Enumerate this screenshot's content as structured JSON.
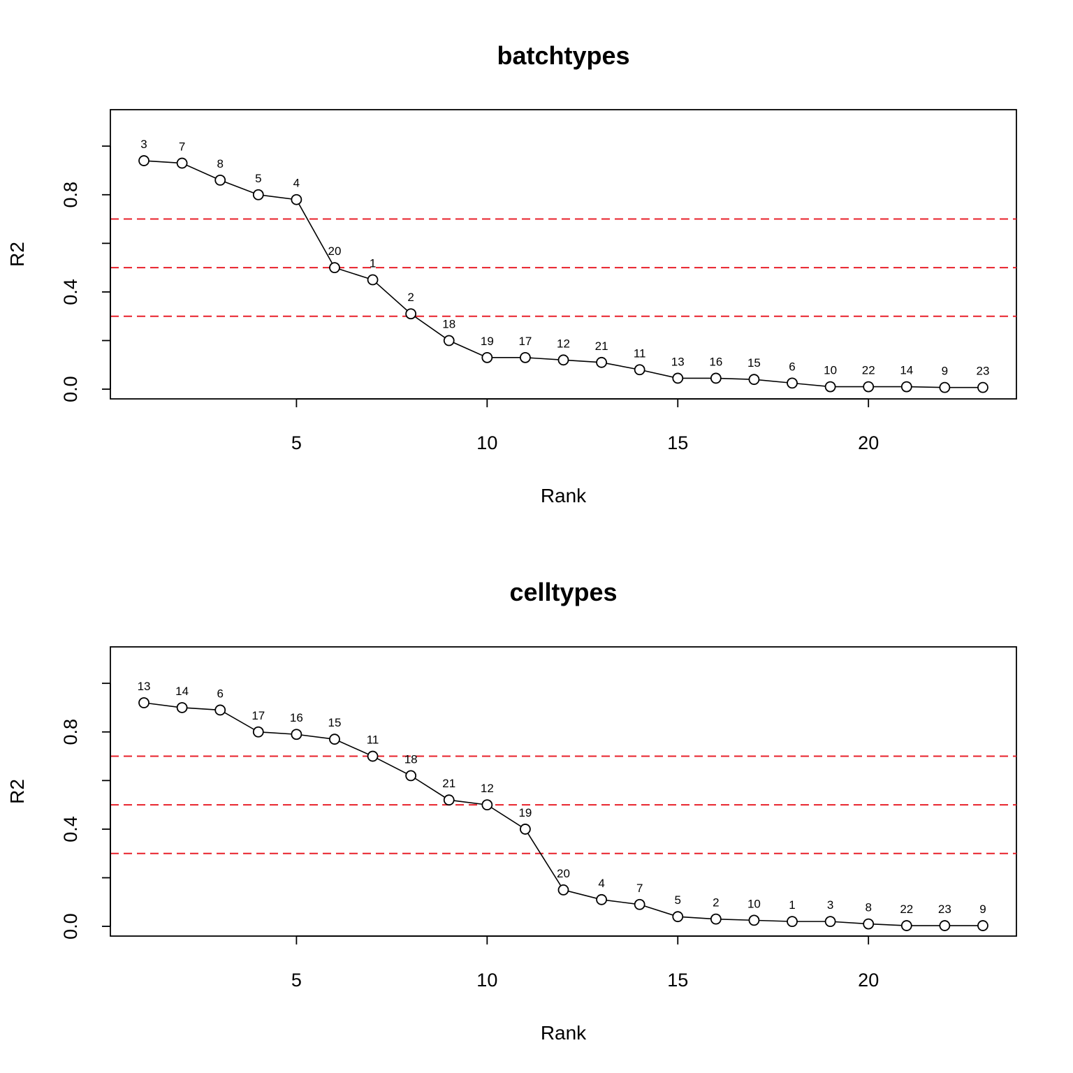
{
  "chart_data": [
    {
      "type": "line",
      "title": "batchtypes",
      "xlabel": "Rank",
      "ylabel": "R2",
      "xlim": [
        0.12,
        23.88
      ],
      "ylim": [
        -0.04,
        1.15
      ],
      "x_ticks": [
        5,
        10,
        15,
        20
      ],
      "y_ticks": [
        0.0,
        0.2,
        0.4,
        0.6,
        0.8,
        1.0
      ],
      "y_tick_labels": [
        "0.0",
        "",
        "0.4",
        "",
        "0.8",
        ""
      ],
      "reference_lines": [
        0.7,
        0.5,
        0.3
      ],
      "reference_line_color": "#e8202a",
      "marker": "open-circle",
      "grid": false,
      "legend": "none",
      "x": [
        1,
        2,
        3,
        4,
        5,
        6,
        7,
        8,
        9,
        10,
        11,
        12,
        13,
        14,
        15,
        16,
        17,
        18,
        19,
        20,
        21,
        22,
        23
      ],
      "y": [
        0.94,
        0.93,
        0.86,
        0.8,
        0.78,
        0.5,
        0.45,
        0.31,
        0.2,
        0.13,
        0.13,
        0.12,
        0.11,
        0.08,
        0.045,
        0.045,
        0.04,
        0.025,
        0.01,
        0.01,
        0.01,
        0.007,
        0.007
      ],
      "point_labels": [
        "3",
        "7",
        "8",
        "5",
        "4",
        "20",
        "1",
        "2",
        "18",
        "19",
        "17",
        "12",
        "21",
        "11",
        "13",
        "16",
        "15",
        "6",
        "10",
        "22",
        "14",
        "9",
        "23"
      ]
    },
    {
      "type": "line",
      "title": "celltypes",
      "xlabel": "Rank",
      "ylabel": "R2",
      "xlim": [
        0.12,
        23.88
      ],
      "ylim": [
        -0.04,
        1.15
      ],
      "x_ticks": [
        5,
        10,
        15,
        20
      ],
      "y_ticks": [
        0.0,
        0.2,
        0.4,
        0.6,
        0.8,
        1.0
      ],
      "y_tick_labels": [
        "0.0",
        "",
        "0.4",
        "",
        "0.8",
        ""
      ],
      "reference_lines": [
        0.7,
        0.5,
        0.3
      ],
      "reference_line_color": "#e8202a",
      "marker": "open-circle",
      "grid": false,
      "legend": "none",
      "x": [
        1,
        2,
        3,
        4,
        5,
        6,
        7,
        8,
        9,
        10,
        11,
        12,
        13,
        14,
        15,
        16,
        17,
        18,
        19,
        20,
        21,
        22,
        23
      ],
      "y": [
        0.92,
        0.9,
        0.89,
        0.8,
        0.79,
        0.77,
        0.7,
        0.62,
        0.52,
        0.5,
        0.4,
        0.15,
        0.11,
        0.09,
        0.04,
        0.03,
        0.025,
        0.02,
        0.02,
        0.01,
        0.003,
        0.003,
        0.003
      ],
      "point_labels": [
        "13",
        "14",
        "6",
        "17",
        "16",
        "15",
        "11",
        "18",
        "21",
        "12",
        "19",
        "20",
        "4",
        "7",
        "5",
        "2",
        "10",
        "1",
        "3",
        "8",
        "22",
        "23",
        "9"
      ]
    }
  ]
}
